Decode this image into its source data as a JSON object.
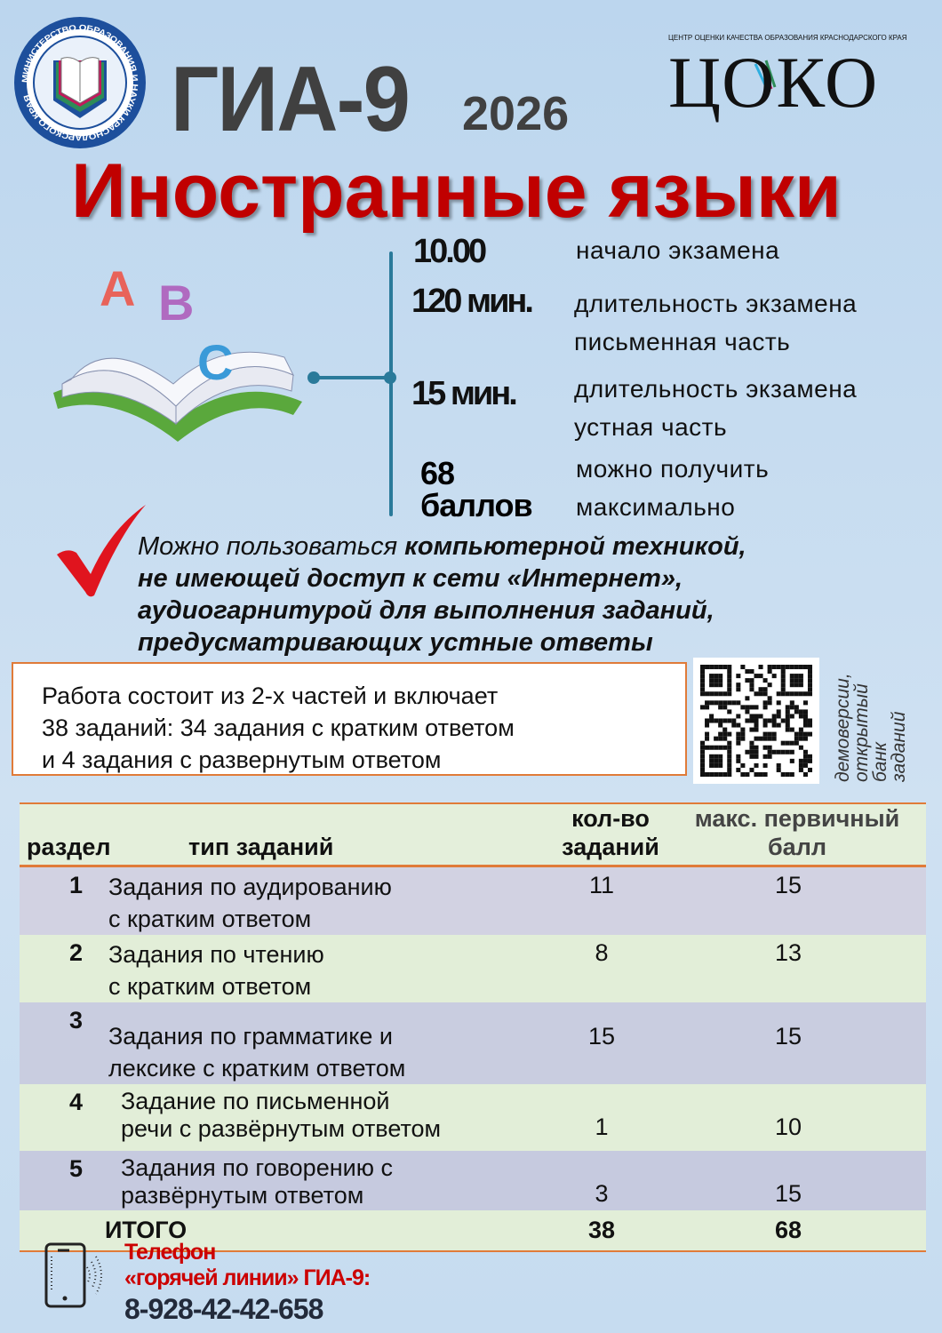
{
  "header": {
    "ministry_logo_text": "МИНИСТЕРСТВО ОБРАЗОВАНИЯ И НАУКИ КРАСНОДАРСКОГО КРАЯ",
    "title": "ГИА-9",
    "year": "2026",
    "coko_logo_text": "ЦОКО",
    "coko_logo_sub": "ЦЕНТР ОЦЕНКИ КАЧЕСТВА ОБРАЗОВАНИЯ КРАСНОДАРСКОГО КРАЯ"
  },
  "subject": "Иностранные языки",
  "illustration_letters": [
    "A",
    "B",
    "C"
  ],
  "info": [
    {
      "value": "10.00",
      "label": [
        "начало экзамена"
      ]
    },
    {
      "value": "120 мин.",
      "label": [
        "длительность экзамена",
        "письменная часть"
      ]
    },
    {
      "value": "15 мин.",
      "label": [
        "длительность экзамена",
        "устная часть"
      ]
    },
    {
      "value": [
        "68",
        "баллов"
      ],
      "label": [
        "можно получить",
        "максимально"
      ]
    }
  ],
  "note": {
    "l1a": "Можно пользоваться ",
    "l1b": "компьютерной техникой,",
    "l2": "не имеющей доступ к сети «Интернет»,",
    "l3": "аудиогарнитурой для выполнения заданий,",
    "l4": "предусматривающих устные ответы"
  },
  "structure": {
    "l1": "Работа состоит из 2-х частей и включает",
    "l2": "38 заданий: 34 задания с кратким ответом",
    "l3": "и 4 задания с развернутым ответом"
  },
  "qr_caption": [
    "демоверсии,",
    "открытый",
    "банк",
    "заданий"
  ],
  "table": {
    "headers": [
      "раздел",
      "тип заданий",
      "кол-во заданий",
      "макс. первичный балл"
    ],
    "rows": [
      {
        "n": "1",
        "type": [
          "Задания по аудированию",
          "с кратким ответом"
        ],
        "count": "11",
        "max": "15"
      },
      {
        "n": "2",
        "type": [
          "Задания по чтению",
          "с кратким ответом"
        ],
        "count": "8",
        "max": "13"
      },
      {
        "n": "3",
        "type": [
          "Задания по грамматике и",
          "лексике с кратким ответом"
        ],
        "count": "15",
        "max": "15"
      },
      {
        "n": "4",
        "type": [
          "Задание по письменной",
          "речи с развёрнутым ответом"
        ],
        "count": "1",
        "max": "10"
      },
      {
        "n": "5",
        "type": [
          "Задания по говорению с",
          "развёрнутым ответом"
        ],
        "count": "3",
        "max": "15"
      }
    ],
    "total": {
      "label": "ИТОГО",
      "count": "38",
      "max": "68"
    }
  },
  "hotline": {
    "l1": "Телефон",
    "l2": "«горячей линии» ГИА-9:",
    "phone": "8-928-42-42-658"
  },
  "colors": {
    "title_red": "#c00000",
    "accent_orange": "#e07b39",
    "line_teal": "#2a7a9a"
  }
}
